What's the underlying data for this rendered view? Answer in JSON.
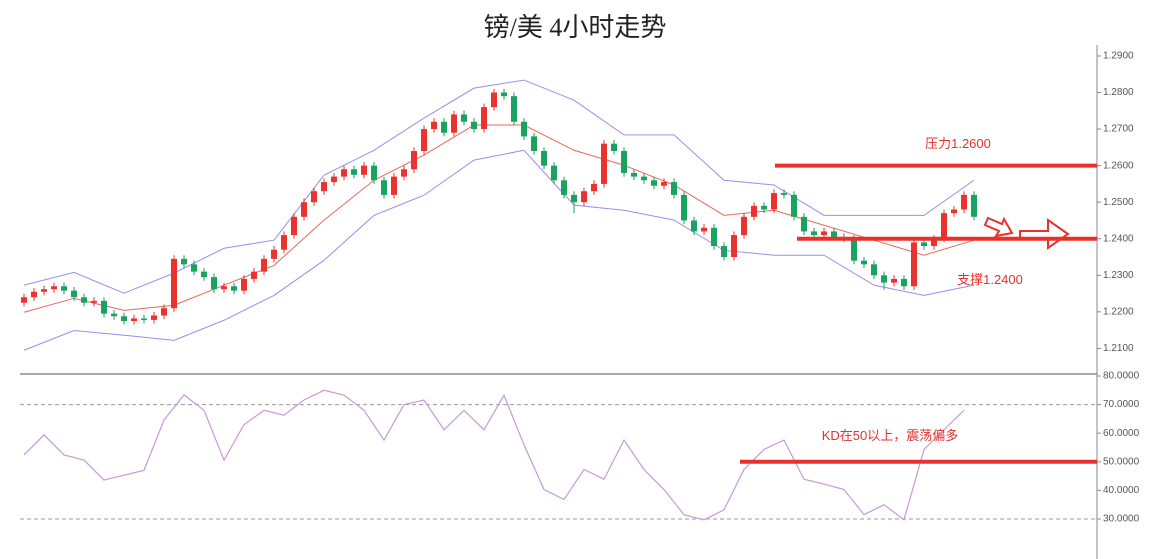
{
  "chart_data": [
    {
      "type": "candlestick",
      "title": "镑/美 4小时走势",
      "up_color": "#e8332e",
      "down_color": "#1aa260",
      "open": [
        1.2225,
        1.224,
        1.2255,
        1.2262,
        1.227,
        1.2258,
        1.224,
        1.2225,
        1.223,
        1.2195,
        1.2188,
        1.2175,
        1.2182,
        1.2178,
        1.219,
        1.221,
        1.2345,
        1.233,
        1.231,
        1.2295,
        1.2262,
        1.227,
        1.2258,
        1.229,
        1.231,
        1.2345,
        1.237,
        1.241,
        1.246,
        1.25,
        1.253,
        1.2555,
        1.257,
        1.259,
        1.2575,
        1.26,
        1.256,
        1.252,
        1.257,
        1.259,
        1.264,
        1.27,
        1.272,
        1.269,
        1.274,
        1.272,
        1.27,
        1.276,
        1.28,
        1.279,
        1.272,
        1.268,
        1.264,
        1.26,
        1.256,
        1.252,
        1.25,
        1.253,
        1.255,
        1.266,
        1.264,
        1.258,
        1.257,
        1.256,
        1.2545,
        1.2555,
        1.252,
        1.245,
        1.242,
        1.243,
        1.238,
        1.235,
        1.241,
        1.246,
        1.249,
        1.248,
        1.2525,
        1.252,
        1.246,
        1.242,
        1.241,
        1.242,
        1.2405,
        1.24,
        1.234,
        1.233,
        1.23,
        1.228,
        1.229,
        1.227,
        1.239,
        1.238,
        1.24,
        1.247,
        1.248,
        1.252
      ],
      "high": [
        1.225,
        1.2265,
        1.2272,
        1.228,
        1.228,
        1.2268,
        1.225,
        1.224,
        1.224,
        1.2205,
        1.2198,
        1.2192,
        1.2192,
        1.22,
        1.222,
        1.2355,
        1.2355,
        1.234,
        1.232,
        1.2305,
        1.228,
        1.228,
        1.23,
        1.232,
        1.2355,
        1.238,
        1.242,
        1.247,
        1.251,
        1.254,
        1.2565,
        1.258,
        1.26,
        1.26,
        1.261,
        1.261,
        1.257,
        1.258,
        1.26,
        1.265,
        1.271,
        1.273,
        1.273,
        1.275,
        1.275,
        1.273,
        1.277,
        1.281,
        1.281,
        1.28,
        1.273,
        1.269,
        1.265,
        1.261,
        1.257,
        1.253,
        1.254,
        1.256,
        1.267,
        1.267,
        1.265,
        1.259,
        1.258,
        1.257,
        1.2565,
        1.2565,
        1.253,
        1.246,
        1.244,
        1.244,
        1.239,
        1.242,
        1.247,
        1.25,
        1.25,
        1.2535,
        1.2535,
        1.253,
        1.247,
        1.243,
        1.243,
        1.243,
        1.2415,
        1.241,
        1.235,
        1.234,
        1.231,
        1.23,
        1.23,
        1.24,
        1.24,
        1.241,
        1.248,
        1.249,
        1.253,
        1.253
      ],
      "low": [
        1.2215,
        1.223,
        1.2245,
        1.2252,
        1.2248,
        1.223,
        1.2215,
        1.2215,
        1.2185,
        1.2178,
        1.2165,
        1.2165,
        1.2168,
        1.2168,
        1.218,
        1.22,
        1.232,
        1.23,
        1.2285,
        1.2252,
        1.2252,
        1.2248,
        1.2248,
        1.228,
        1.23,
        1.2335,
        1.236,
        1.24,
        1.245,
        1.249,
        1.252,
        1.2545,
        1.256,
        1.2565,
        1.2565,
        1.255,
        1.251,
        1.251,
        1.256,
        1.258,
        1.263,
        1.269,
        1.268,
        1.268,
        1.271,
        1.269,
        1.269,
        1.275,
        1.278,
        1.271,
        1.267,
        1.263,
        1.259,
        1.255,
        1.251,
        1.247,
        1.249,
        1.252,
        1.254,
        1.263,
        1.257,
        1.256,
        1.255,
        1.2535,
        1.2535,
        1.251,
        1.244,
        1.241,
        1.241,
        1.237,
        1.234,
        1.234,
        1.24,
        1.245,
        1.247,
        1.247,
        1.251,
        1.245,
        1.241,
        1.24,
        1.24,
        1.2395,
        1.239,
        1.233,
        1.232,
        1.229,
        1.226,
        1.227,
        1.226,
        1.226,
        1.237,
        1.237,
        1.239,
        1.246,
        1.247,
        1.245
      ],
      "close": [
        1.224,
        1.2255,
        1.2262,
        1.227,
        1.2258,
        1.224,
        1.2225,
        1.223,
        1.2195,
        1.2188,
        1.2175,
        1.2182,
        1.2178,
        1.219,
        1.221,
        1.2345,
        1.233,
        1.231,
        1.2295,
        1.2262,
        1.227,
        1.2258,
        1.229,
        1.231,
        1.2345,
        1.237,
        1.241,
        1.246,
        1.25,
        1.253,
        1.2555,
        1.257,
        1.259,
        1.2575,
        1.26,
        1.256,
        1.252,
        1.257,
        1.259,
        1.264,
        1.27,
        1.272,
        1.269,
        1.274,
        1.272,
        1.27,
        1.276,
        1.28,
        1.279,
        1.272,
        1.268,
        1.264,
        1.26,
        1.256,
        1.252,
        1.25,
        1.253,
        1.255,
        1.266,
        1.264,
        1.258,
        1.257,
        1.256,
        1.2545,
        1.2555,
        1.252,
        1.245,
        1.242,
        1.243,
        1.238,
        1.235,
        1.241,
        1.246,
        1.249,
        1.248,
        1.2525,
        1.252,
        1.246,
        1.242,
        1.241,
        1.242,
        1.2405,
        1.24,
        1.234,
        1.233,
        1.23,
        1.228,
        1.229,
        1.227,
        1.239,
        1.238,
        1.24,
        1.247,
        1.248,
        1.252,
        1.246
      ],
      "series": [
        {
          "color": "#9a8cf0",
          "x": [
            0,
            5,
            10,
            15,
            20,
            25,
            30,
            35,
            40,
            45,
            50,
            55,
            60,
            65,
            70,
            75,
            80,
            85,
            90,
            95
          ],
          "values": [
            1.2273,
            1.2308,
            1.2251,
            1.2306,
            1.2374,
            1.2396,
            1.2574,
            1.2642,
            1.273,
            1.2812,
            1.2834,
            1.2779,
            1.2684,
            1.2684,
            1.256,
            1.2547,
            1.2464,
            1.2464,
            1.2464,
            1.256
          ]
        },
        {
          "color": "#e8685a",
          "x": [
            0,
            5,
            10,
            15,
            20,
            25,
            30,
            35,
            40,
            45,
            50,
            55,
            60,
            65,
            70,
            75,
            80,
            85,
            90,
            95
          ],
          "values": [
            1.2199,
            1.2237,
            1.2204,
            1.2218,
            1.2273,
            1.2327,
            1.2451,
            1.256,
            1.2629,
            1.2711,
            1.2711,
            1.2642,
            1.2601,
            1.2547,
            1.2464,
            1.2478,
            1.2437,
            1.2396,
            1.2355,
            1.2396
          ]
        },
        {
          "color": "#9a8cf0",
          "x": [
            0,
            5,
            10,
            15,
            20,
            25,
            30,
            35,
            40,
            45,
            50,
            55,
            60,
            65,
            70,
            75,
            80,
            85,
            90,
            95
          ],
          "values": [
            1.2095,
            1.2149,
            1.2136,
            1.2122,
            1.2177,
            1.2245,
            1.2341,
            1.2464,
            1.2519,
            1.2615,
            1.2642,
            1.2492,
            1.2478,
            1.2451,
            1.2368,
            1.2355,
            1.2355,
            1.2273,
            1.2245,
            1.2273
          ]
        }
      ],
      "annotations": [
        {
          "text": "压力1.2600",
          "value": 1.26,
          "x_start": 75.1
        },
        {
          "text": "支撑1.2400",
          "value": 1.24,
          "x_start": 77.3
        }
      ],
      "ylim": [
        1.203,
        1.293
      ],
      "yticks": [
        {
          "value": 1.21,
          "label": "1.2100"
        },
        {
          "value": 1.22,
          "label": "1.2200"
        },
        {
          "value": 1.23,
          "label": "1.2300"
        },
        {
          "value": 1.24,
          "label": "1.2400"
        },
        {
          "value": 1.25,
          "label": "1.2500"
        },
        {
          "value": 1.26,
          "label": "1.2600"
        },
        {
          "value": 1.27,
          "label": "1.2700"
        },
        {
          "value": 1.28,
          "label": "1.2800"
        },
        {
          "value": 1.29,
          "label": "1.2900"
        }
      ]
    },
    {
      "type": "line",
      "color": "#c59ad8",
      "x": [
        0,
        2,
        4,
        6,
        8,
        10,
        12,
        14,
        16,
        18,
        20,
        22,
        24,
        26,
        28,
        30,
        32,
        34,
        36,
        38,
        40,
        42,
        44,
        46,
        48,
        50,
        52,
        54,
        56,
        58,
        60,
        62,
        64,
        66,
        68,
        70,
        72,
        74,
        76,
        78,
        80,
        82,
        84,
        86,
        88,
        90,
        92,
        94
      ],
      "values": [
        52.4,
        59.4,
        52.4,
        50.6,
        43.6,
        45.3,
        47.0,
        64.6,
        73.4,
        68.0,
        50.6,
        63.0,
        68.0,
        66.3,
        71.6,
        75.0,
        73.3,
        68.0,
        57.6,
        70.0,
        71.6,
        61.2,
        68.0,
        61.2,
        73.3,
        55.9,
        40.3,
        36.8,
        47.3,
        43.9,
        57.6,
        47.3,
        40.3,
        31.5,
        29.7,
        33.2,
        47.3,
        54.3,
        57.6,
        43.9,
        42.2,
        40.3,
        31.5,
        35.0,
        29.7,
        54.3,
        61.2,
        68.0
      ],
      "reference_lines": [
        70,
        30
      ],
      "annotations": [
        {
          "text": "KD在50以上，震荡偏多",
          "value": 50,
          "x_start": 71.6
        }
      ],
      "ylim": [
        16,
        80.7
      ],
      "yticks": [
        {
          "value": 30,
          "label": "30.0000"
        },
        {
          "value": 40,
          "label": "40.0000"
        },
        {
          "value": 50,
          "label": "50.0000"
        },
        {
          "value": 60,
          "label": "60.0000"
        },
        {
          "value": 70,
          "label": "70.0000"
        },
        {
          "value": 80,
          "label": "80.0000"
        }
      ]
    }
  ]
}
